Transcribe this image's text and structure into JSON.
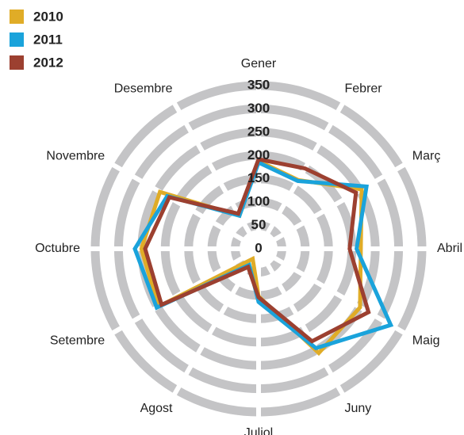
{
  "chart_data": {
    "type": "radar",
    "categories": [
      "Gener",
      "Febrer",
      "Març",
      "Abril",
      "Maig",
      "Juny",
      "Juliol",
      "Agost",
      "Setembre",
      "Octubre",
      "Novembre",
      "Desembre"
    ],
    "series": [
      {
        "name": "2010",
        "color": "#e0ac27",
        "values": [
          188,
          170,
          255,
          219,
          251,
          258,
          102,
          25,
          248,
          251,
          244,
          82
        ]
      },
      {
        "name": "2011",
        "color": "#1aa3db",
        "values": [
          185,
          168,
          267,
          210,
          327,
          246,
          114,
          40,
          252,
          265,
          226,
          82
        ]
      },
      {
        "name": "2012",
        "color": "#9c4030",
        "values": [
          192,
          199,
          241,
          195,
          272,
          229,
          104,
          45,
          240,
          243,
          221,
          87
        ]
      }
    ],
    "ylim": [
      0,
      350
    ],
    "yticks": [
      0,
      50,
      100,
      150,
      200,
      250,
      300,
      350
    ],
    "grid": true,
    "legend": "top-left"
  }
}
